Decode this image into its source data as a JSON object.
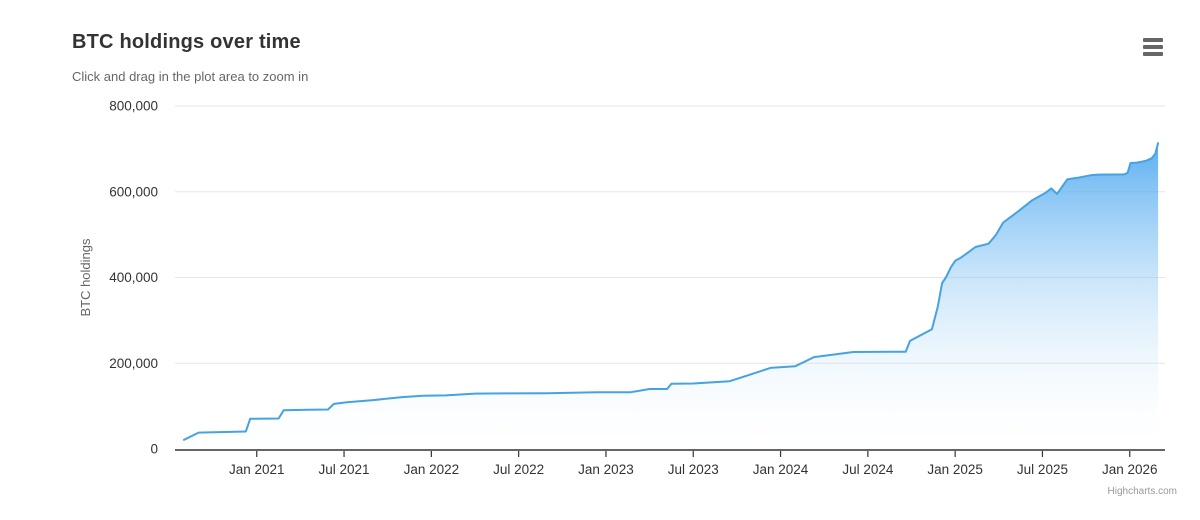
{
  "header": {
    "title": "BTC holdings over time",
    "subtitle": "Click and drag in the plot area to zoom in"
  },
  "menu": {
    "icon": "hamburger-menu-icon"
  },
  "credits": {
    "label": "Highcharts.com"
  },
  "chart_data": {
    "type": "area",
    "title": "BTC holdings over time",
    "subtitle": "Click and drag in the plot area to zoom in",
    "xlabel": "",
    "ylabel": "BTC holdings",
    "ylim": [
      0,
      800000
    ],
    "grid": true,
    "legend": false,
    "y_ticks": [
      {
        "value": 0,
        "label": "0"
      },
      {
        "value": 200000,
        "label": "200,000"
      },
      {
        "value": 400000,
        "label": "400,000"
      },
      {
        "value": 600000,
        "label": "600,000"
      },
      {
        "value": 800000,
        "label": "800,000"
      }
    ],
    "x_unit": "months since Aug 2020",
    "x_ticks": [
      {
        "m": 5,
        "label": "Jan 2021"
      },
      {
        "m": 11,
        "label": "Jul 2021"
      },
      {
        "m": 17,
        "label": "Jan 2022"
      },
      {
        "m": 23,
        "label": "Jul 2022"
      },
      {
        "m": 29,
        "label": "Jan 2023"
      },
      {
        "m": 35,
        "label": "Jul 2023"
      },
      {
        "m": 41,
        "label": "Jan 2024"
      },
      {
        "m": 47,
        "label": "Jul 2024"
      },
      {
        "m": 53,
        "label": "Jan 2025"
      },
      {
        "m": 59,
        "label": "Jul 2025"
      },
      {
        "m": 65,
        "label": "Jan 2026"
      }
    ],
    "colors": {
      "line": "#46a2e0",
      "fill_top": "#3ea0ee",
      "fill_bottom": "#ffffff",
      "grid": "#e6e6e6",
      "axis_line": "#333333",
      "tick": "#333333",
      "label": "#333333",
      "axis_title": "#666666",
      "title": "#333333",
      "subtitle": "#666666",
      "credits": "#999999"
    },
    "series": [
      {
        "name": "BTC holdings",
        "points": [
          [
            0.0,
            21454
          ],
          [
            1.0,
            38250
          ],
          [
            4.25,
            40824
          ],
          [
            4.55,
            70470
          ],
          [
            6.5,
            71079
          ],
          [
            6.85,
            90531
          ],
          [
            8.5,
            91326
          ],
          [
            9.9,
            92079
          ],
          [
            10.3,
            105085
          ],
          [
            11.2,
            108992
          ],
          [
            13.0,
            114042
          ],
          [
            15.0,
            121044
          ],
          [
            16.4,
            124391
          ],
          [
            18.0,
            125051
          ],
          [
            20.0,
            129218
          ],
          [
            22.0,
            129699
          ],
          [
            25.0,
            130000
          ],
          [
            28.4,
            132500
          ],
          [
            30.7,
            132500
          ],
          [
            32.0,
            140000
          ],
          [
            33.2,
            140000
          ],
          [
            33.5,
            152333
          ],
          [
            35.0,
            152800
          ],
          [
            37.5,
            158245
          ],
          [
            39.0,
            174530
          ],
          [
            40.3,
            189150
          ],
          [
            42.0,
            193000
          ],
          [
            43.3,
            214246
          ],
          [
            46.0,
            226331
          ],
          [
            49.6,
            227000
          ],
          [
            49.9,
            252220
          ],
          [
            51.4,
            279420
          ],
          [
            51.8,
            331200
          ],
          [
            52.1,
            386700
          ],
          [
            52.4,
            402100
          ],
          [
            52.7,
            423650
          ],
          [
            53.0,
            439000
          ],
          [
            53.4,
            446400
          ],
          [
            54.4,
            471107
          ],
          [
            55.3,
            478740
          ],
          [
            55.8,
            499096
          ],
          [
            56.3,
            528185
          ],
          [
            57.3,
            553555
          ],
          [
            58.3,
            580250
          ],
          [
            59.2,
            597325
          ],
          [
            59.6,
            607770
          ],
          [
            60.0,
            595000
          ],
          [
            60.7,
            628791
          ],
          [
            61.4,
            632457
          ],
          [
            62.3,
            638460
          ],
          [
            62.8,
            640031
          ],
          [
            64.6,
            640418
          ],
          [
            64.85,
            644000
          ],
          [
            65.05,
            667000
          ],
          [
            65.5,
            668000
          ],
          [
            66.1,
            672000
          ],
          [
            66.5,
            678000
          ],
          [
            66.75,
            688000
          ],
          [
            66.95,
            713500
          ]
        ]
      }
    ]
  }
}
